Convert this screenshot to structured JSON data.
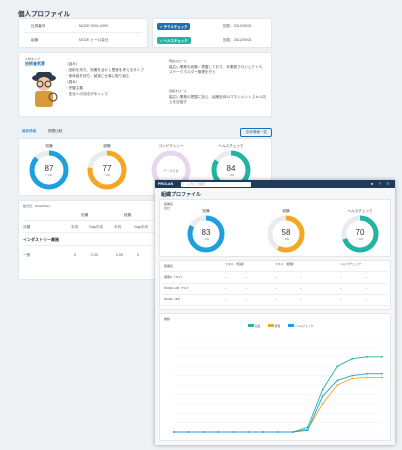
{
  "page": {
    "title": "個人プロファイル"
  },
  "info": {
    "rows": [
      {
        "label": "社員番号",
        "value": "MOZE-0001-0009"
      },
      {
        "label": "組織",
        "value": "MOZE ヒーロ会社"
      }
    ]
  },
  "badges": [
    {
      "label": "テクルチェック",
      "date": "回答：2012/09/21"
    },
    {
      "label": "ヘルスチェック",
      "date": "回答：2012/09/21"
    }
  ],
  "profile": {
    "type_label": "人材タイプ",
    "type_name": "技術者気質",
    "strengths": [
      "（強み）",
      "・技術を持ち、知識を活かし堅実を考えるタイプ",
      "・使命感を持ち、誠実に仕事に取り組む",
      "（弱み）",
      "・完璧主義",
      "・変化への対応がゆっくり"
    ],
    "role_head": "現在のロール",
    "role_text": "幅広い業務を経験・把握しており、本業務プロジェクトや、ステークホルダー管理を行う",
    "goal_head": "目指すロール",
    "goal_text": "幅広い業務の把握に加え、組織全体のマネジメントスキル向上を目指す"
  },
  "tabs": {
    "a": "最新情報",
    "b": "期間比較",
    "button": "全体情報一覧"
  },
  "scores": [
    {
      "label": "知識",
      "value": "87",
      "sub": "/ 100",
      "color": "#1e9fe0",
      "level": 0.87
    },
    {
      "label": "経験",
      "value": "77",
      "sub": "/ 100",
      "color": "#f5a623",
      "level": 0.77
    },
    {
      "label": "コンピテンシー",
      "value": "",
      "sub": "データ不足",
      "color": "#e6d7f0",
      "level": 0
    },
    {
      "label": "ヘルスチェック",
      "value": "84",
      "sub": "/ 100",
      "color": "#23b3a3",
      "level": 0.84
    }
  ],
  "lower_table": {
    "date": "集計日：2012/09/21",
    "cols": [
      "知識",
      "経験"
    ],
    "sub_cols": [
      "平均",
      "Gap平均",
      "平均",
      "Gap平均"
    ],
    "rows": [
      {
        "name": "分類",
        "vals": [
          "",
          "",
          "",
          ""
        ]
      },
      {
        "name": "インダストリー業務",
        "vals": [
          "",
          "",
          "",
          ""
        ]
      },
      {
        "name": "一般",
        "vals": [
          "0",
          "2.00",
          "2.00",
          "0"
        ]
      }
    ]
  },
  "overlay": {
    "app_name": "PROLAN",
    "search_placeholder": "入力して検索",
    "title": "組織プロファイル",
    "org_label": "部署名",
    "org_value": "全社",
    "scores": [
      {
        "label": "知識",
        "value": "83",
        "sub": "/ 100",
        "color": "#1e9fe0",
        "level": 0.83
      },
      {
        "label": "経験",
        "value": "58",
        "sub": "/ 100",
        "color": "#f5a623",
        "level": 0.58
      },
      {
        "label": "ヘルスチェック",
        "value": "70",
        "sub": "/ 100",
        "color": "#23b3a3",
        "level": 0.7
      }
    ],
    "table": {
      "head": "部署名",
      "groups": [
        "スキル（知識）",
        "スキル（経験）",
        "ヘルスチェック"
      ],
      "rows": [
        {
          "name": "開発G（TLV）",
          "vals": [
            "--",
            "--",
            "--",
            "--",
            "--",
            "--"
          ]
        },
        {
          "name": "MOZE LAB（TLV）",
          "vals": [
            "--",
            "--",
            "--",
            "--",
            "--",
            "--"
          ]
        },
        {
          "name": "MOZE（82）",
          "vals": [
            "--",
            "--",
            "--",
            "--",
            "--",
            "--"
          ]
        }
      ]
    },
    "chart_title": "推移"
  },
  "chart_data": {
    "type": "line",
    "title": "推移",
    "legend": [
      "知識",
      "経験",
      "ヘルスチェック"
    ],
    "x": [
      1,
      2,
      3,
      4,
      5,
      6,
      7,
      8,
      9,
      10,
      11,
      12,
      13,
      14,
      15
    ],
    "series": [
      {
        "name": "知識",
        "color": "#23b3a3",
        "values": [
          0,
          0,
          0,
          0,
          0,
          0,
          0,
          0,
          0,
          5,
          45,
          70,
          78,
          80,
          80
        ]
      },
      {
        "name": "経験",
        "color": "#f5a623",
        "values": [
          0,
          0,
          0,
          0,
          0,
          0,
          0,
          0,
          0,
          3,
          30,
          50,
          57,
          58,
          58
        ]
      },
      {
        "name": "ヘルスチェック",
        "color": "#1e9fe0",
        "values": [
          0,
          0,
          0,
          0,
          0,
          0,
          0,
          0,
          0,
          2,
          38,
          55,
          60,
          62,
          62
        ]
      }
    ],
    "ylim": [
      0,
      100
    ]
  }
}
